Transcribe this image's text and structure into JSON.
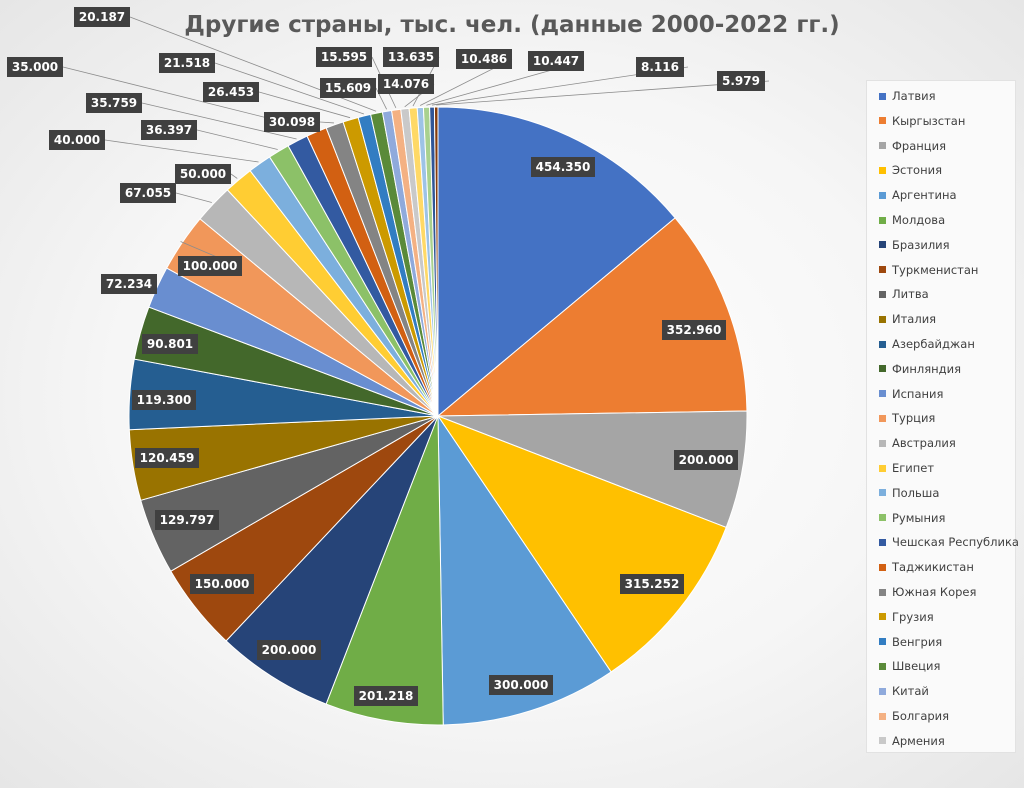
{
  "chart_data": {
    "type": "pie",
    "title": "Другие страны, тыс. чел. (данные 2000-2022 гг.)",
    "legend_position": "right",
    "slices": [
      {
        "label": "Латвия",
        "value": 454.35,
        "value_label": "454.350",
        "color": "#4472C4"
      },
      {
        "label": "Кыргызстан",
        "value": 352.96,
        "value_label": "352.960",
        "color": "#ED7D31"
      },
      {
        "label": "Франция",
        "value": 200.0,
        "value_label": "200.000",
        "color": "#A5A5A5"
      },
      {
        "label": "Эстония",
        "value": 315.252,
        "value_label": "315.252",
        "color": "#FFC000"
      },
      {
        "label": "Аргентина",
        "value": 300.0,
        "value_label": "300.000",
        "color": "#5B9BD5"
      },
      {
        "label": "Молдова",
        "value": 201.218,
        "value_label": "201.218",
        "color": "#70AD47"
      },
      {
        "label": "Бразилия",
        "value": 200.0,
        "value_label": "200.000",
        "color": "#264478"
      },
      {
        "label": "Туркменистан",
        "value": 150.0,
        "value_label": "150.000",
        "color": "#9E480E"
      },
      {
        "label": "Литва",
        "value": 129.797,
        "value_label": "129.797",
        "color": "#636363"
      },
      {
        "label": "Италия",
        "value": 120.459,
        "value_label": "120.459",
        "color": "#997300"
      },
      {
        "label": "Азербайджан",
        "value": 119.3,
        "value_label": "119.300",
        "color": "#255E91"
      },
      {
        "label": "Финляндия",
        "value": 90.801,
        "value_label": "90.801",
        "color": "#43682B"
      },
      {
        "label": "Испания",
        "value": 72.234,
        "value_label": "72.234",
        "color": "#698ED0"
      },
      {
        "label": "Турция",
        "value": 100.0,
        "value_label": "100.000",
        "color": "#F1975A"
      },
      {
        "label": "Австралия",
        "value": 67.055,
        "value_label": "67.055",
        "color": "#B7B7B7"
      },
      {
        "label": "Египет",
        "value": 50.0,
        "value_label": "50.000",
        "color": "#FFCD33"
      },
      {
        "label": "Польша",
        "value": 40.0,
        "value_label": "40.000",
        "color": "#7CAFDD"
      },
      {
        "label": "Румыния",
        "value": 36.397,
        "value_label": "36.397",
        "color": "#8CC168"
      },
      {
        "label": "Чешская Республика",
        "value": 35.759,
        "value_label": "35.759",
        "color": "#335AA1"
      },
      {
        "label": "Таджикистан",
        "value": 35.0,
        "value_label": "35.000",
        "color": "#D26012"
      },
      {
        "label": "Южная Корея",
        "value": 30.098,
        "value_label": "30.098",
        "color": "#848484"
      },
      {
        "label": "Грузия",
        "value": 26.453,
        "value_label": "26.453",
        "color": "#CC9A00"
      },
      {
        "label": "Венгрия",
        "value": 21.518,
        "value_label": "21.518",
        "color": "#327DC2"
      },
      {
        "label": "Швеция",
        "value": 20.187,
        "value_label": "20.187",
        "color": "#5A8A39"
      },
      {
        "label": "Китай",
        "value": 15.609,
        "value_label": "15.609",
        "color": "#8FAADC"
      },
      {
        "label": "Болгария",
        "value": 15.595,
        "value_label": "15.595",
        "color": "#F4B183"
      },
      {
        "label": "Армения",
        "value": 14.076,
        "value_label": "14.076",
        "color": "#C9C9C9"
      },
      {
        "label": "",
        "value": 13.635,
        "value_label": "13.635",
        "color": "#FFD966"
      },
      {
        "label": "",
        "value": 10.486,
        "value_label": "10.486",
        "color": "#9DC3E6"
      },
      {
        "label": "",
        "value": 10.447,
        "value_label": "10.447",
        "color": "#A9D18E"
      },
      {
        "label": "",
        "value": 8.116,
        "value_label": "8.116",
        "color": "#2F5597"
      },
      {
        "label": "",
        "value": 5.979,
        "value_label": "5.979",
        "color": "#843C0C"
      }
    ]
  }
}
